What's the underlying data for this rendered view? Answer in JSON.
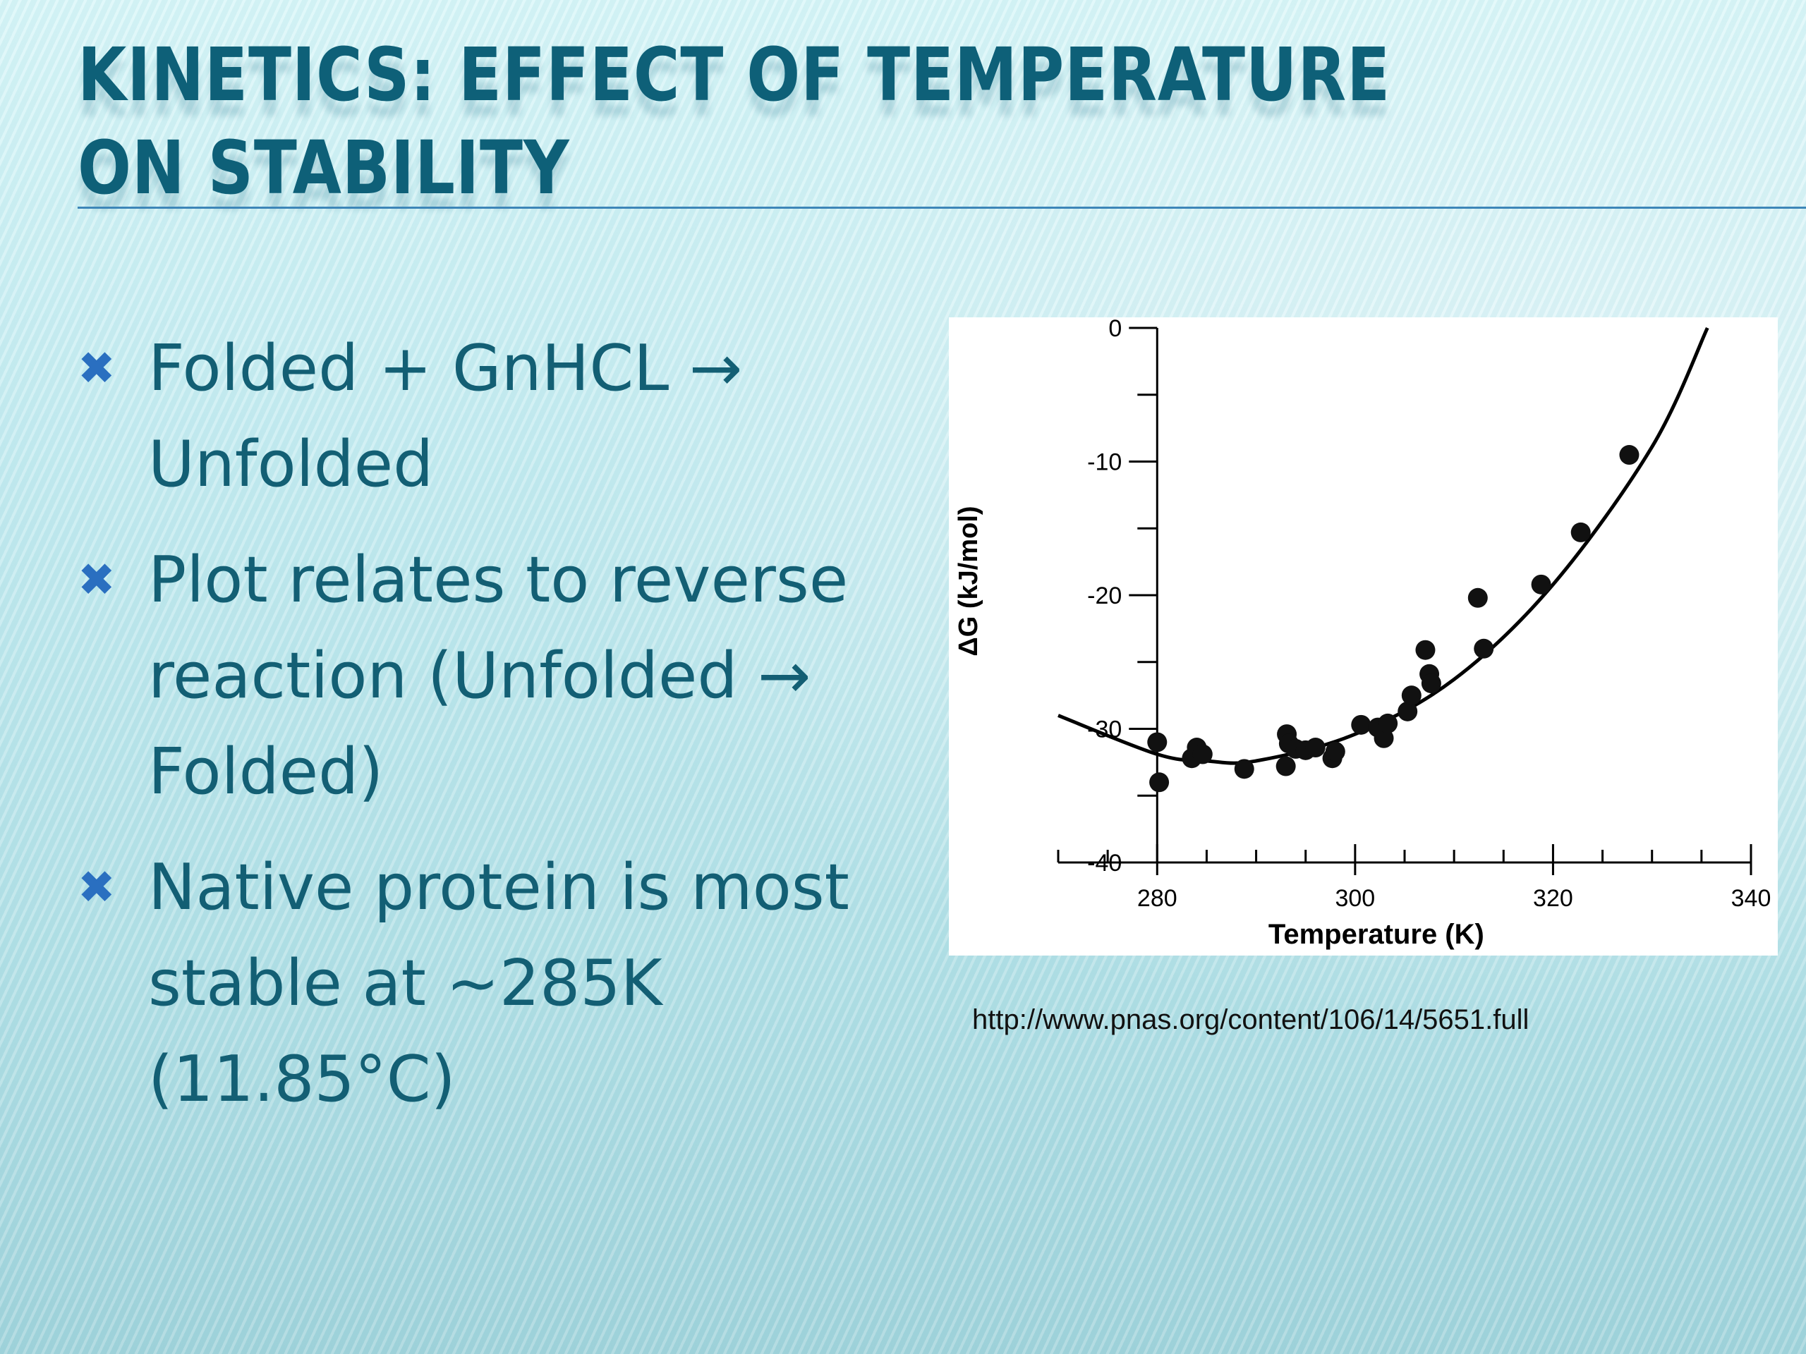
{
  "slide": {
    "title": "Kinetics: Effect of Temperature on Stability",
    "bullets": [
      "Folded + GnHCL → Unfolded",
      "Plot relates to reverse reaction (Unfolded → Folded)",
      "Native protein is most stable at ~285K (11.85°C)"
    ],
    "bullet_icon": "cross-icon",
    "bullet_color": "#2a6fc0",
    "source_url": "http://www.pnas.org/content/106/14/5651.full"
  },
  "chart_data": {
    "type": "scatter",
    "title": "",
    "xlabel": "Temperature (K)",
    "ylabel": "ΔG (kJ/mol)",
    "xlim": [
      270,
      340
    ],
    "ylim": [
      -40,
      0
    ],
    "xticks": [
      280,
      300,
      320,
      340
    ],
    "yticks": [
      0,
      -10,
      -20,
      -30,
      -40
    ],
    "grid": false,
    "series": [
      {
        "points": [
          {
            "x": 280.0,
            "y": -31.0
          },
          {
            "x": 280.2,
            "y": -34.0
          },
          {
            "x": 283.5,
            "y": -32.2
          },
          {
            "x": 284.0,
            "y": -31.4
          },
          {
            "x": 284.6,
            "y": -31.9
          },
          {
            "x": 288.8,
            "y": -33.0
          },
          {
            "x": 293.0,
            "y": -32.8
          },
          {
            "x": 293.1,
            "y": -30.4
          },
          {
            "x": 293.3,
            "y": -31.1
          },
          {
            "x": 294.0,
            "y": -31.5
          },
          {
            "x": 295.0,
            "y": -31.6
          },
          {
            "x": 296.0,
            "y": -31.4
          },
          {
            "x": 297.7,
            "y": -32.2
          },
          {
            "x": 298.0,
            "y": -31.7
          },
          {
            "x": 300.6,
            "y": -29.7
          },
          {
            "x": 302.3,
            "y": -29.9
          },
          {
            "x": 302.9,
            "y": -30.7
          },
          {
            "x": 303.3,
            "y": -29.6
          },
          {
            "x": 305.3,
            "y": -28.7
          },
          {
            "x": 305.7,
            "y": -27.5
          },
          {
            "x": 307.1,
            "y": -24.1
          },
          {
            "x": 307.5,
            "y": -25.9
          },
          {
            "x": 307.7,
            "y": -26.6
          },
          {
            "x": 312.4,
            "y": -20.2
          },
          {
            "x": 313.0,
            "y": -24.0
          },
          {
            "x": 318.8,
            "y": -19.2
          },
          {
            "x": 322.8,
            "y": -15.3
          },
          {
            "x": 327.7,
            "y": -9.5
          }
        ]
      }
    ],
    "fit_curve": {
      "type": "quadratic",
      "x": [
        270,
        280,
        285,
        290,
        300,
        310,
        320,
        330,
        335.6
      ],
      "y": [
        -29.0,
        -31.9,
        -32.4,
        -32.4,
        -30.4,
        -26.3,
        -19.2,
        -8.9,
        0.0
      ]
    }
  }
}
